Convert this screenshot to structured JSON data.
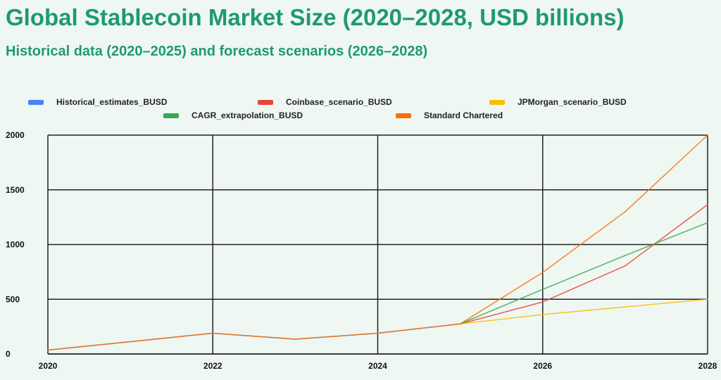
{
  "chart_data": {
    "type": "line",
    "title": "Global Stablecoin Market Size (2020–2028, USD billions)",
    "subtitle": "Historical data (2020–2025) and forecast scenarios (2026–2028)",
    "xlabel": "",
    "ylabel": "",
    "xlim": [
      2020,
      2028
    ],
    "ylim": [
      0,
      2000
    ],
    "x_ticks": [
      "2020",
      "2022",
      "2024",
      "2026",
      "2028"
    ],
    "y_ticks": [
      "0",
      "500",
      "1000",
      "1500",
      "2000"
    ],
    "grid": true,
    "legend_position": "top",
    "series": [
      {
        "name": "Historical_estimates_BUSD",
        "color": "#4285f4",
        "x": [
          2020,
          2022,
          2023,
          2024,
          2025
        ],
        "values": [
          35,
          190,
          135,
          190,
          275
        ]
      },
      {
        "name": "Coinbase_scenario_BUSD",
        "color": "#ea4335",
        "x": [
          2025,
          2026,
          2027,
          2028
        ],
        "values": [
          275,
          475,
          805,
          1365
        ]
      },
      {
        "name": "JPMorgan_scenario_BUSD",
        "color": "#fbbc04",
        "x": [
          2025,
          2026,
          2027,
          2028
        ],
        "values": [
          275,
          360,
          430,
          500
        ]
      },
      {
        "name": "CAGR_extrapolation_BUSD",
        "color": "#34a853",
        "x": [
          2025,
          2026,
          2027,
          2028
        ],
        "values": [
          275,
          590,
          900,
          1200
        ]
      },
      {
        "name": "Standard Chartered",
        "color": "#ff6d01",
        "x": [
          2020,
          2022,
          2023,
          2024,
          2025,
          2026,
          2027,
          2028
        ],
        "values": [
          35,
          190,
          135,
          190,
          275,
          745,
          1300,
          2000
        ]
      }
    ]
  }
}
